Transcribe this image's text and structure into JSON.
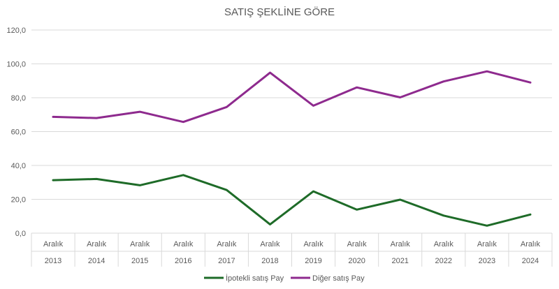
{
  "chart_data": {
    "type": "line",
    "title": "SATIŞ ŞEKLİNE GÖRE",
    "xlabel": "",
    "ylabel": "",
    "ylim": [
      0,
      120
    ],
    "yticks": [
      "0,0",
      "20,0",
      "40,0",
      "60,0",
      "80,0",
      "100,0",
      "120,0"
    ],
    "categories": [
      {
        "month": "Aralık",
        "year": "2013"
      },
      {
        "month": "Aralık",
        "year": "2014"
      },
      {
        "month": "Aralık",
        "year": "2015"
      },
      {
        "month": "Aralık",
        "year": "2016"
      },
      {
        "month": "Aralık",
        "year": "2017"
      },
      {
        "month": "Aralık",
        "year": "2018"
      },
      {
        "month": "Aralık",
        "year": "2019"
      },
      {
        "month": "Aralık",
        "year": "2020"
      },
      {
        "month": "Aralık",
        "year": "2021"
      },
      {
        "month": "Aralık",
        "year": "2022"
      },
      {
        "month": "Aralık",
        "year": "2023"
      },
      {
        "month": "Aralık",
        "year": "2024"
      }
    ],
    "series": [
      {
        "name": "İpotekli satış Pay",
        "color": "#1e6b28",
        "values": [
          31.3,
          32.0,
          28.3,
          34.3,
          25.5,
          5.2,
          24.7,
          13.9,
          19.8,
          10.4,
          4.4,
          11.0
        ]
      },
      {
        "name": "Diğer satış Pay",
        "color": "#8e2a8e",
        "values": [
          68.7,
          68.0,
          71.7,
          65.7,
          74.5,
          94.8,
          75.3,
          86.1,
          80.2,
          89.6,
          95.6,
          89.0
        ]
      }
    ],
    "grid": true,
    "legend": "bottom-center"
  }
}
